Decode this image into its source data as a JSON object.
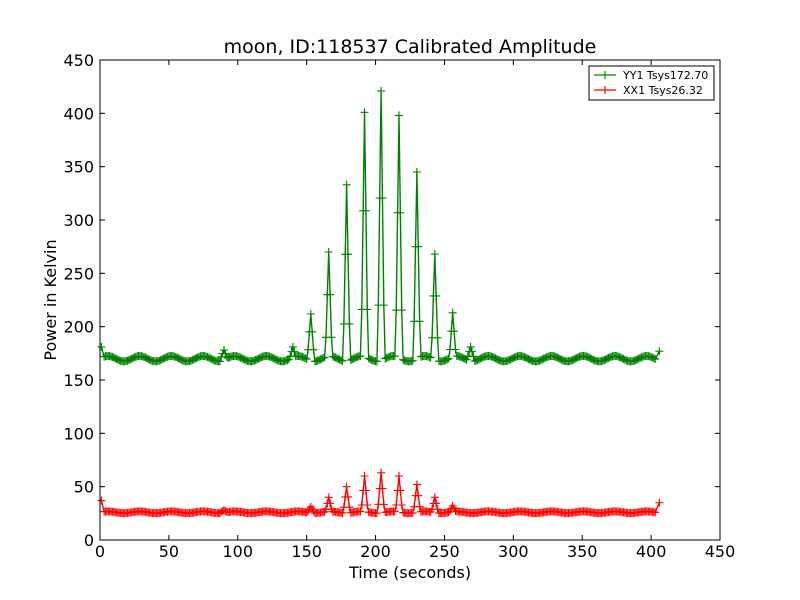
{
  "chart_data": {
    "type": "line",
    "title": "moon, ID:118537 Calibrated Amplitude",
    "xlabel": "Time (seconds)",
    "ylabel": "Power in Kelvin",
    "xlim": [
      0,
      450
    ],
    "ylim": [
      0,
      450
    ],
    "xticks": [
      0,
      50,
      100,
      150,
      200,
      250,
      300,
      350,
      400,
      450
    ],
    "yticks": [
      0,
      50,
      100,
      150,
      200,
      250,
      300,
      350,
      400,
      450
    ],
    "grid": false,
    "legend_position": "top-right",
    "marker": "+",
    "series": [
      {
        "name": "YY1 Tsys172.70",
        "color": "#008000",
        "baseline": 170,
        "ripple_amplitude": 2.5,
        "ripple_period": 23,
        "start_edge": {
          "x": 1,
          "y": 181
        },
        "end_edge": {
          "x": 406,
          "y": 177
        },
        "time_start": 3,
        "time_end": 403,
        "time_step": 1,
        "small_peaks": [
          {
            "x": 90,
            "y": 178
          },
          {
            "x": 140,
            "y": 181
          },
          {
            "x": 269,
            "y": 181
          }
        ],
        "peaks": [
          {
            "x": 153,
            "y": 212
          },
          {
            "x": 166,
            "y": 270
          },
          {
            "x": 179,
            "y": 333
          },
          {
            "x": 192,
            "y": 401
          },
          {
            "x": 204,
            "y": 421
          },
          {
            "x": 217,
            "y": 398
          },
          {
            "x": 230,
            "y": 345
          },
          {
            "x": 243,
            "y": 268
          },
          {
            "x": 256,
            "y": 213
          }
        ]
      },
      {
        "name": "XX1 Tsys26.32",
        "color": "#ff0000",
        "baseline": 26,
        "ripple_amplitude": 0.8,
        "ripple_period": 23,
        "start_edge": {
          "x": 1,
          "y": 37
        },
        "end_edge": {
          "x": 406,
          "y": 35
        },
        "time_start": 3,
        "time_end": 403,
        "time_step": 1,
        "small_peaks": [
          {
            "x": 90,
            "y": 28
          }
        ],
        "peaks": [
          {
            "x": 153,
            "y": 31
          },
          {
            "x": 166,
            "y": 40
          },
          {
            "x": 179,
            "y": 50
          },
          {
            "x": 192,
            "y": 60
          },
          {
            "x": 204,
            "y": 63
          },
          {
            "x": 217,
            "y": 60
          },
          {
            "x": 230,
            "y": 52
          },
          {
            "x": 243,
            "y": 40
          },
          {
            "x": 256,
            "y": 32
          }
        ]
      }
    ]
  }
}
